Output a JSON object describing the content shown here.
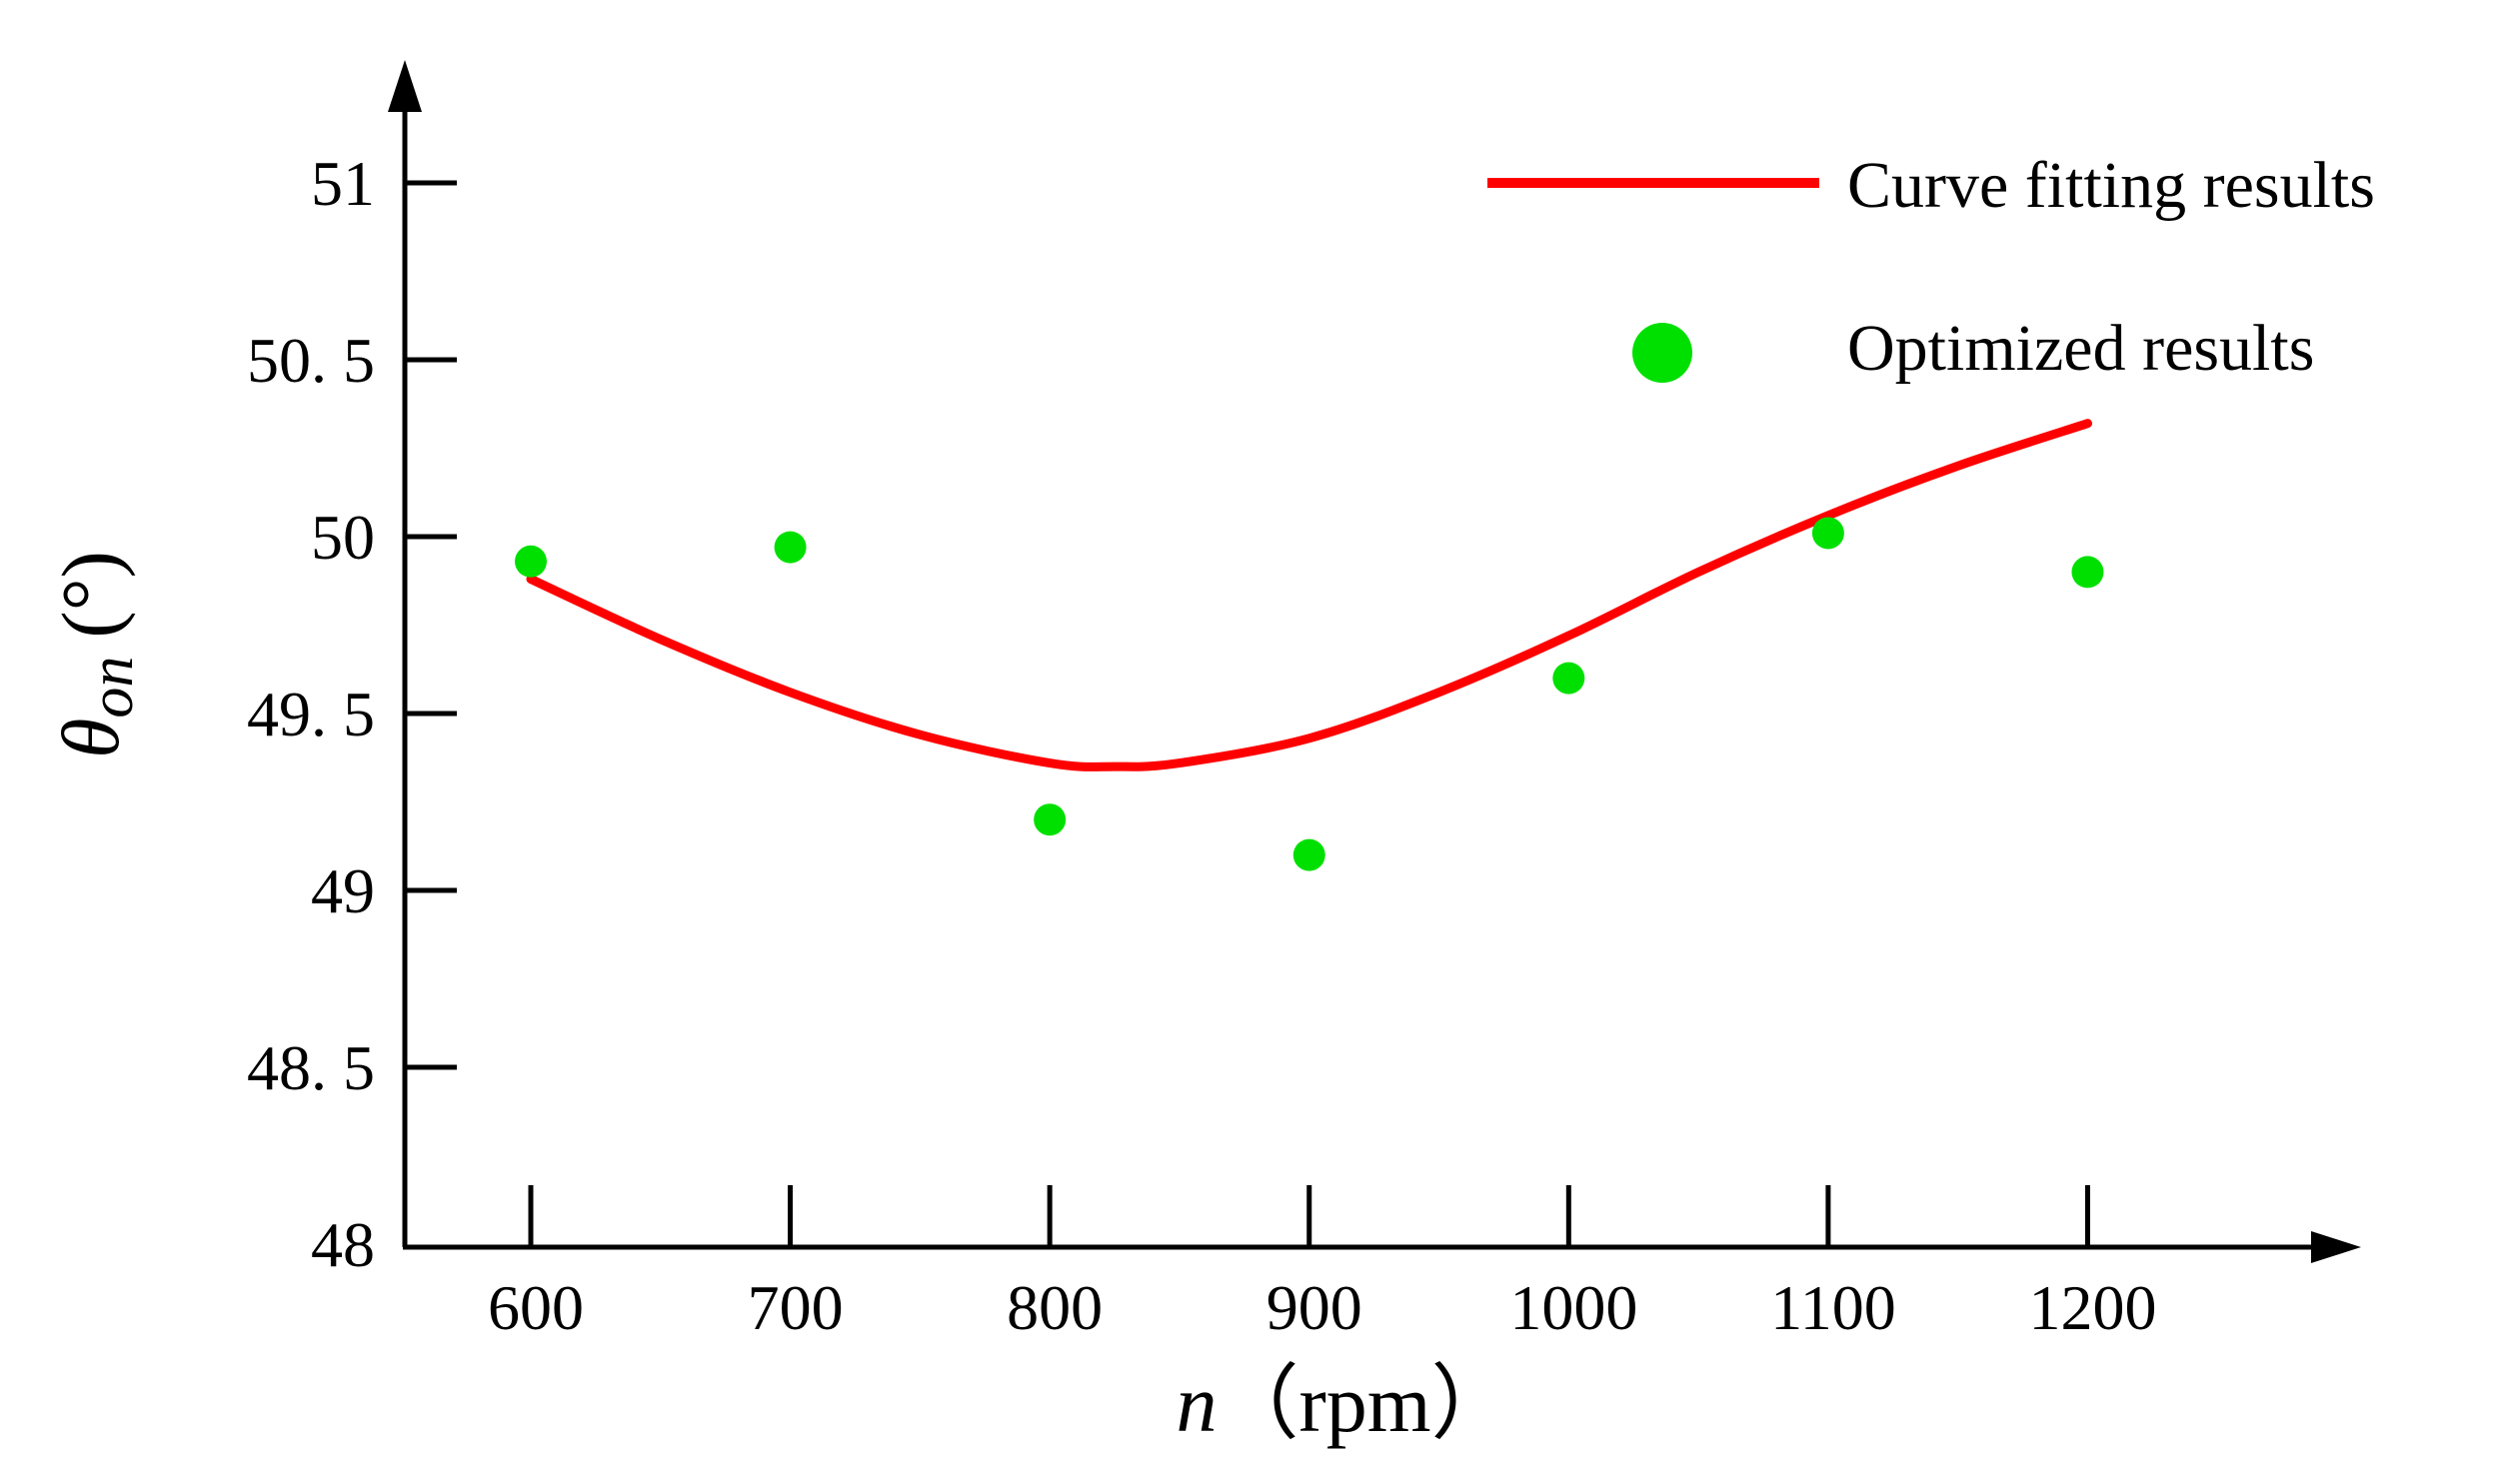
{
  "colors": {
    "axis": "#000000",
    "fit_line": "#ff0000",
    "points": "#00e000"
  },
  "chart_data": {
    "type": "line+scatter",
    "title": "",
    "xlabel": {
      "symbol": "n",
      "unit": "（rpm）"
    },
    "ylabel": {
      "symbol": "θ",
      "subscript": "on",
      "unit": "(°)"
    },
    "xlim": [
      550,
      1280
    ],
    "ylim": [
      48,
      51.3
    ],
    "x_ticks": [
      600,
      700,
      800,
      900,
      1000,
      1100,
      1200
    ],
    "x_tick_labels": [
      "600",
      "700",
      "800",
      "900",
      "1000",
      "1100",
      "1200"
    ],
    "y_ticks": [
      48,
      48.5,
      49,
      49.5,
      50,
      50.5,
      51
    ],
    "y_tick_labels": [
      "48",
      "48. 5",
      "49",
      "49. 5",
      "50",
      "50. 5",
      "51"
    ],
    "legend_position": "top-right",
    "series": [
      {
        "name": "Curve fitting results",
        "kind": "line",
        "x": [
          600,
          650,
          700,
          750,
          800,
          825,
          850,
          900,
          950,
          1000,
          1050,
          1100,
          1150,
          1200
        ],
        "y": [
          49.88,
          49.71,
          49.56,
          49.44,
          49.36,
          49.35,
          49.36,
          49.43,
          49.56,
          49.72,
          49.9,
          50.06,
          50.2,
          50.32
        ]
      },
      {
        "name": "Optimized results",
        "kind": "scatter",
        "x": [
          600,
          700,
          800,
          900,
          1000,
          1100,
          1200
        ],
        "y": [
          49.93,
          49.97,
          49.2,
          49.1,
          49.6,
          50.01,
          49.9
        ]
      }
    ]
  }
}
